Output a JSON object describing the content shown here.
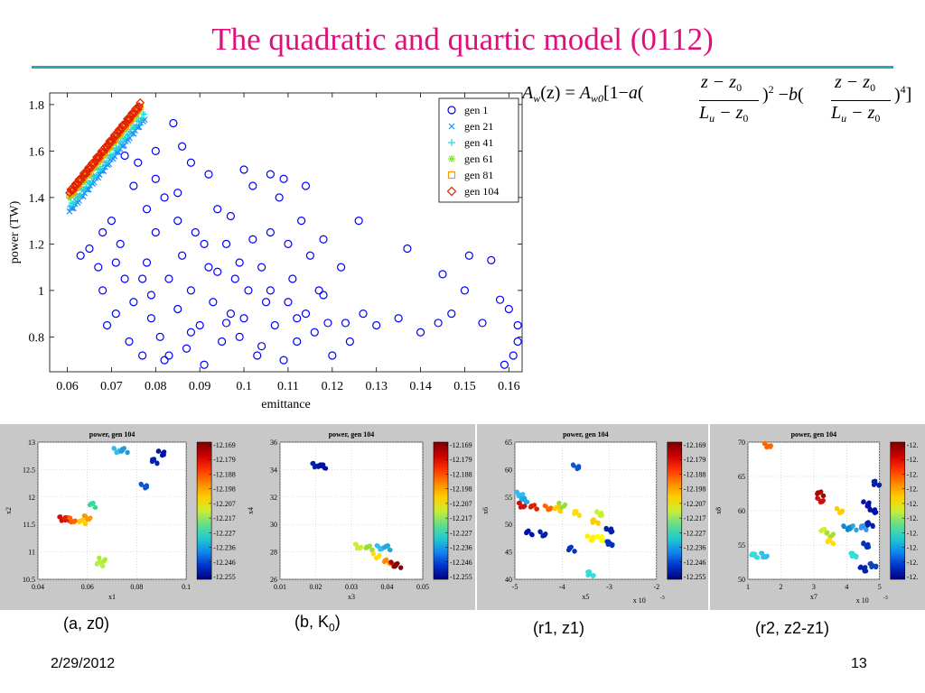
{
  "slide": {
    "title": "The quadratic and quartic model (0112)",
    "date": "2/29/2012",
    "page_number": "13"
  },
  "formula": {
    "lhs_A": "A",
    "lhs_w": "w",
    "lhs_arg": "(z)",
    "eq": "=",
    "rhs_A": "A",
    "rhs_w0": "w0",
    "bracket_open": "[1−",
    "a": "a",
    "paren_open": "(",
    "num1": "z − z",
    "num1_sub": "0",
    "den1": "L",
    "den1_sub": "u",
    "den1_rest": " − z",
    "den1_sub2": "0",
    "paren_close": ")",
    "pow2": "2",
    "minus": "−",
    "b": "b",
    "num2": "z − z",
    "num2_sub": "0",
    "den2": "L",
    "den2_sub": "u",
    "den2_rest": " − z",
    "den2_sub2": "0",
    "pow4": "4",
    "bracket_close": "]"
  },
  "captions": {
    "a": "(a, z0)",
    "b_prefix": "(b, K",
    "b_sub": "0",
    "b_suffix": ")",
    "r1": "(r1, z1)",
    "r2": "(r2, z2-z1)"
  },
  "chart_data": [
    {
      "type": "scatter",
      "title": "",
      "xlabel": "emittance",
      "ylabel": "power (TW)",
      "xlim": [
        0.056,
        0.163
      ],
      "ylim": [
        0.65,
        1.85
      ],
      "x_ticks": [
        "0.06",
        "0.07",
        "0.08",
        "0.09",
        "0.1",
        "0.11",
        "0.12",
        "0.13",
        "0.14",
        "0.15",
        "0.16"
      ],
      "y_ticks": [
        "0.8",
        "1",
        "1.2",
        "1.4",
        "1.6",
        "1.8"
      ],
      "grid": false,
      "legend_position": "top-right",
      "series": [
        {
          "name": "gen 1",
          "marker": "circle",
          "color": "#0000ff",
          "points": [
            [
              0.063,
              1.15
            ],
            [
              0.065,
              1.18
            ],
            [
              0.067,
              1.1
            ],
            [
              0.068,
              1.25
            ],
            [
              0.068,
              1.0
            ],
            [
              0.07,
              1.3
            ],
            [
              0.071,
              0.9
            ],
            [
              0.072,
              1.2
            ],
            [
              0.073,
              1.05
            ],
            [
              0.074,
              0.78
            ],
            [
              0.075,
              1.45
            ],
            [
              0.075,
              0.95
            ],
            [
              0.076,
              1.55
            ],
            [
              0.077,
              0.72
            ],
            [
              0.078,
              1.35
            ],
            [
              0.078,
              1.12
            ],
            [
              0.079,
              0.88
            ],
            [
              0.08,
              1.6
            ],
            [
              0.08,
              1.25
            ],
            [
              0.081,
              0.8
            ],
            [
              0.082,
              1.4
            ],
            [
              0.082,
              0.7
            ],
            [
              0.083,
              1.05
            ],
            [
              0.084,
              1.72
            ],
            [
              0.085,
              1.3
            ],
            [
              0.085,
              0.92
            ],
            [
              0.086,
              1.15
            ],
            [
              0.087,
              0.75
            ],
            [
              0.088,
              1.55
            ],
            [
              0.088,
              1.0
            ],
            [
              0.089,
              1.25
            ],
            [
              0.09,
              0.85
            ],
            [
              0.091,
              0.68
            ],
            [
              0.092,
              1.1
            ],
            [
              0.093,
              0.95
            ],
            [
              0.094,
              1.35
            ],
            [
              0.095,
              0.78
            ],
            [
              0.096,
              1.2
            ],
            [
              0.097,
              0.9
            ],
            [
              0.098,
              1.05
            ],
            [
              0.099,
              0.8
            ],
            [
              0.1,
              1.52
            ],
            [
              0.1,
              0.88
            ],
            [
              0.101,
              1.0
            ],
            [
              0.102,
              1.45
            ],
            [
              0.103,
              0.72
            ],
            [
              0.104,
              1.1
            ],
            [
              0.105,
              0.95
            ],
            [
              0.106,
              1.5
            ],
            [
              0.106,
              1.25
            ],
            [
              0.107,
              0.85
            ],
            [
              0.108,
              1.4
            ],
            [
              0.109,
              0.7
            ],
            [
              0.11,
              1.2
            ],
            [
              0.11,
              0.95
            ],
            [
              0.111,
              1.05
            ],
            [
              0.112,
              0.78
            ],
            [
              0.113,
              1.3
            ],
            [
              0.114,
              0.9
            ],
            [
              0.115,
              1.15
            ],
            [
              0.116,
              0.82
            ],
            [
              0.117,
              1.0
            ],
            [
              0.118,
              1.22
            ],
            [
              0.12,
              0.72
            ],
            [
              0.122,
              1.1
            ],
            [
              0.123,
              0.86
            ],
            [
              0.124,
              0.78
            ],
            [
              0.126,
              1.3
            ],
            [
              0.127,
              0.9
            ],
            [
              0.13,
              0.85
            ],
            [
              0.135,
              0.88
            ],
            [
              0.137,
              1.18
            ],
            [
              0.14,
              0.82
            ],
            [
              0.144,
              0.86
            ],
            [
              0.145,
              1.07
            ],
            [
              0.147,
              0.9
            ],
            [
              0.15,
              1.0
            ],
            [
              0.151,
              1.15
            ],
            [
              0.154,
              0.86
            ],
            [
              0.156,
              1.13
            ],
            [
              0.158,
              0.96
            ],
            [
              0.159,
              0.68
            ],
            [
              0.16,
              0.92
            ],
            [
              0.161,
              0.72
            ],
            [
              0.162,
              0.85
            ],
            [
              0.162,
              0.78
            ],
            [
              0.073,
              1.58
            ],
            [
              0.08,
              1.48
            ],
            [
              0.086,
              1.62
            ],
            [
              0.092,
              1.5
            ],
            [
              0.097,
              1.32
            ],
            [
              0.102,
              1.22
            ],
            [
              0.109,
              1.48
            ],
            [
              0.114,
              1.45
            ],
            [
              0.118,
              0.98
            ],
            [
              0.069,
              0.85
            ],
            [
              0.077,
              1.05
            ],
            [
              0.083,
              0.72
            ],
            [
              0.091,
              1.2
            ],
            [
              0.096,
              0.86
            ],
            [
              0.104,
              0.76
            ],
            [
              0.112,
              0.88
            ],
            [
              0.119,
              0.86
            ],
            [
              0.106,
              1.0
            ],
            [
              0.099,
              1.12
            ],
            [
              0.088,
              0.82
            ],
            [
              0.079,
              0.98
            ],
            [
              0.071,
              1.12
            ],
            [
              0.085,
              1.42
            ],
            [
              0.094,
              1.08
            ]
          ]
        },
        {
          "name": "gen 21",
          "marker": "x",
          "color": "#1a8fff",
          "points": []
        },
        {
          "name": "gen 41",
          "marker": "plus",
          "color": "#27d6d6",
          "points": []
        },
        {
          "name": "gen 61",
          "marker": "asterisk",
          "color": "#7ee82a",
          "points": []
        },
        {
          "name": "gen 81",
          "marker": "square",
          "color": "#ff9900",
          "points": []
        },
        {
          "name": "gen 104",
          "marker": "diamond",
          "color": "#e02000",
          "points": []
        }
      ],
      "front": {
        "start": [
          0.0605,
          1.41
        ],
        "end": [
          0.0765,
          1.79
        ],
        "start_low": [
          0.0605,
          1.36
        ],
        "end_low": [
          0.0775,
          1.76
        ]
      }
    }
  ],
  "panels": [
    {
      "id": "a",
      "title": "power, gen 104",
      "xlabel": "x1",
      "ylabel": "x2",
      "xticks": [
        "0.04",
        "0.06",
        "0.08",
        "0.1"
      ],
      "yticks": [
        "10.5",
        "11",
        "11.5",
        "12",
        "12.5",
        "13"
      ],
      "xlim": [
        0.04,
        0.1
      ],
      "ylim": [
        10.5,
        13.0
      ],
      "x_multiplier": "",
      "clusters": [
        [
          0.05,
          11.6,
          "#cc1010"
        ],
        [
          0.052,
          11.6,
          "#dd2200"
        ],
        [
          0.054,
          11.58,
          "#ff6600"
        ],
        [
          0.058,
          11.55,
          "#ffcc00"
        ],
        [
          0.06,
          11.62,
          "#ff9900"
        ],
        [
          0.062,
          11.85,
          "#33dd99"
        ],
        [
          0.066,
          10.85,
          "#aaee33"
        ],
        [
          0.065,
          10.78,
          "#bbee44"
        ],
        [
          0.072,
          12.85,
          "#33bbee"
        ],
        [
          0.075,
          12.85,
          "#2299dd"
        ],
        [
          0.083,
          12.2,
          "#1155cc"
        ],
        [
          0.087,
          12.65,
          "#0022aa"
        ],
        [
          0.09,
          12.8,
          "#0011aa"
        ]
      ],
      "colorbar": [
        "-12.169",
        "-12.179",
        "-12.188",
        "-12.198",
        "-12.207",
        "-12.217",
        "-12.227",
        "-12.236",
        "-12.246",
        "-12.255"
      ]
    },
    {
      "id": "b",
      "title": "power, gen 104",
      "xlabel": "x3",
      "ylabel": "x4",
      "xticks": [
        "0.01",
        "0.02",
        "0.03",
        "0.04",
        "0.05"
      ],
      "yticks": [
        "26",
        "28",
        "30",
        "32",
        "34",
        "36"
      ],
      "xlim": [
        0.01,
        0.05
      ],
      "ylim": [
        26,
        36
      ],
      "x_multiplier": "",
      "clusters": [
        [
          0.02,
          34.3,
          "#0022aa"
        ],
        [
          0.022,
          34.25,
          "#0011aa"
        ],
        [
          0.032,
          28.4,
          "#ccee33"
        ],
        [
          0.035,
          28.3,
          "#99dd33"
        ],
        [
          0.038,
          28.3,
          "#33bbee"
        ],
        [
          0.04,
          28.3,
          "#22aadd"
        ],
        [
          0.037,
          27.7,
          "#ffdd00"
        ],
        [
          0.04,
          27.3,
          "#ff8800"
        ],
        [
          0.042,
          27.1,
          "#aa0000"
        ],
        [
          0.043,
          27.0,
          "#880000"
        ]
      ],
      "colorbar": [
        "-12.169",
        "-12.179",
        "-12.188",
        "-12.198",
        "-12.207",
        "-12.217",
        "-12.227",
        "-12.236",
        "-12.246",
        "-12.255"
      ]
    },
    {
      "id": "r1",
      "title": "power, gen 104",
      "xlabel": "x5",
      "ylabel": "x6",
      "xticks": [
        "-5",
        "-4",
        "-3",
        "-2"
      ],
      "yticks": [
        "40",
        "45",
        "50",
        "55",
        "60",
        "65"
      ],
      "xlim": [
        -5,
        -2
      ],
      "ylim": [
        40,
        65
      ],
      "x_multiplier": "x 10",
      "clusters": [
        [
          -4.9,
          55.5,
          "#33bbee"
        ],
        [
          -4.8,
          54.5,
          "#22aadd"
        ],
        [
          -4.85,
          53.5,
          "#cc1010"
        ],
        [
          -4.6,
          53.2,
          "#dd2200"
        ],
        [
          -4.3,
          53.0,
          "#ff6600"
        ],
        [
          -4.1,
          52.8,
          "#ffcc00"
        ],
        [
          -4.0,
          53.5,
          "#99dd33"
        ],
        [
          -4.7,
          48.5,
          "#0011aa"
        ],
        [
          -4.4,
          48.3,
          "#0022aa"
        ],
        [
          -3.8,
          45.5,
          "#0033bb"
        ],
        [
          -3.7,
          60.5,
          "#1155cc"
        ],
        [
          -3.7,
          52.0,
          "#ffdd00"
        ],
        [
          -3.4,
          47.5,
          "#ffee00"
        ],
        [
          -3.3,
          50.5,
          "#ffcc00"
        ],
        [
          -3.2,
          52.0,
          "#ccee33"
        ],
        [
          -3.4,
          41.0,
          "#33dddd"
        ],
        [
          -3.0,
          49.0,
          "#0022aa"
        ],
        [
          -3.0,
          46.5,
          "#0033bb"
        ],
        [
          -3.2,
          47.5,
          "#ffff00"
        ]
      ],
      "colorbar": [
        "-12.169",
        "-12.179",
        "-12.188",
        "-12.198",
        "-12.207",
        "-12.217",
        "-12.227",
        "-12.236",
        "-12.246",
        "-12.255"
      ]
    },
    {
      "id": "r2",
      "title": "power, gen 104",
      "xlabel": "x7",
      "ylabel": "x8",
      "xticks": [
        "1",
        "2",
        "3",
        "4",
        "5"
      ],
      "yticks": [
        "50",
        "55",
        "60",
        "65",
        "70"
      ],
      "xlim": [
        1,
        5
      ],
      "ylim": [
        50,
        70
      ],
      "x_multiplier": "x 10",
      "clusters": [
        [
          1.6,
          69.5,
          "#ff6600"
        ],
        [
          1.2,
          53.5,
          "#33dddd"
        ],
        [
          1.5,
          53.5,
          "#33bbee"
        ],
        [
          3.2,
          62.5,
          "#aa0000"
        ],
        [
          3.2,
          61.5,
          "#cc1010"
        ],
        [
          3.3,
          57.0,
          "#ccee33"
        ],
        [
          3.5,
          56.5,
          "#aadd33"
        ],
        [
          3.5,
          55.5,
          "#ffdd00"
        ],
        [
          3.8,
          60.0,
          "#ffcc00"
        ],
        [
          4.2,
          57.5,
          "#22aadd"
        ],
        [
          4.0,
          57.5,
          "#1188cc"
        ],
        [
          4.5,
          57.5,
          "#3399ee"
        ],
        [
          4.6,
          61.0,
          "#0011aa"
        ],
        [
          4.7,
          58.0,
          "#0022aa"
        ],
        [
          4.6,
          55.0,
          "#0033bb"
        ],
        [
          4.9,
          64.0,
          "#0022aa"
        ],
        [
          4.8,
          60.0,
          "#0011aa"
        ],
        [
          4.2,
          53.5,
          "#33dddd"
        ],
        [
          4.5,
          51.5,
          "#0022aa"
        ],
        [
          4.8,
          52.0,
          "#1144bb"
        ]
      ],
      "colorbar": [
        "-12.",
        "-12.",
        "-12.",
        "-12.",
        "-12.",
        "-12.",
        "-12.",
        "-12.",
        "-12.",
        "-12."
      ]
    }
  ]
}
